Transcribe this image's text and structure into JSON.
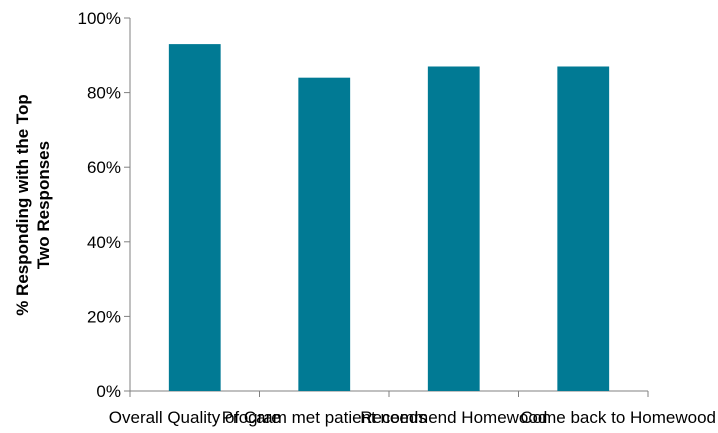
{
  "chart_data": {
    "type": "bar",
    "title": "",
    "xlabel": "",
    "ylabel": [
      "% Responding with the Top",
      "Two Responses"
    ],
    "categories": [
      "Overall Quality of Care",
      "Program met patient needs",
      "Recommend Homewood",
      "Come back to Homewood"
    ],
    "values": [
      93,
      84,
      87,
      87
    ],
    "ylim": [
      0,
      100
    ],
    "yticks": [
      0,
      20,
      40,
      60,
      80,
      100
    ],
    "ytick_labels": [
      "0%",
      "20%",
      "40%",
      "60%",
      "80%",
      "100%"
    ],
    "grid": false,
    "legend": "none",
    "bar_color": "#017a94"
  }
}
